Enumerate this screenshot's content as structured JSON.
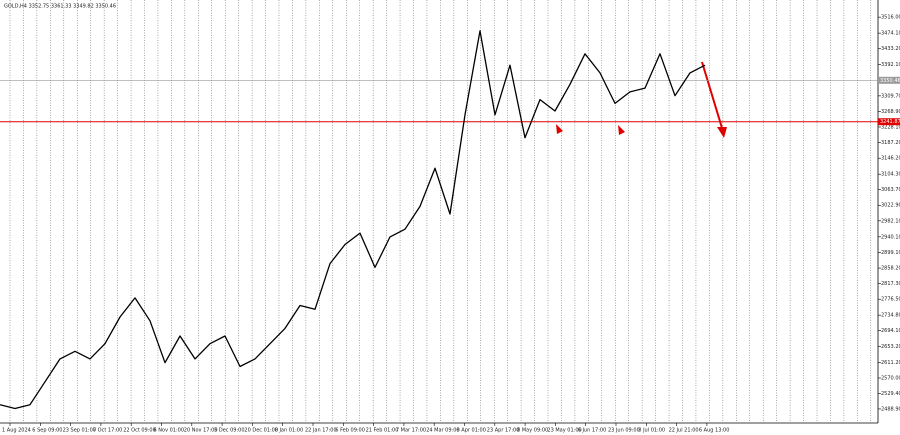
{
  "chart_data": {
    "type": "line",
    "subtitle": "GOLD,H4  3352.75 3361.33 3349.82 3350.46",
    "color": "#000000",
    "values": [
      2500,
      2490,
      2500,
      2560,
      2620,
      2640,
      2620,
      2660,
      2730,
      2780,
      2720,
      2610,
      2680,
      2620,
      2660,
      2680,
      2600,
      2620,
      2660,
      2700,
      2760,
      2750,
      2870,
      2920,
      2950,
      2860,
      2940,
      2960,
      3020,
      3120,
      3000,
      3260,
      3480,
      3260,
      3390,
      3200,
      3300,
      3270,
      3340,
      3420,
      3370,
      3290,
      3320,
      3330,
      3420,
      3310,
      3370,
      3390
    ],
    "x_labels": [
      "1 Aug 2024",
      "6 Sep 09:00",
      "23 Sep 01:00",
      "7 Oct 17:00",
      "22 Oct 09:00",
      "6 Nov 01:00",
      "20 Nov 17:00",
      "5 Dec 09:00",
      "20 Dec 01:00",
      "8 Jan 01:00",
      "22 Jan 17:00",
      "6 Feb 09:00",
      "21 Feb 01:00",
      "7 Mar 17:00",
      "24 Mar 09:00",
      "8 Apr 01:00",
      "23 Apr 17:00",
      "8 May 09:00",
      "23 May 01:00",
      "6 Jun 17:00",
      "23 Jun 09:00",
      "8 Jul 01:00",
      "22 Jul 21:00",
      "6 Aug 13:00"
    ],
    "ylim": [
      2452,
      3561
    ],
    "yticks": [
      {
        "value": 3516.0,
        "label": "3516.00"
      },
      {
        "value": 3474.1,
        "label": "3474.10"
      },
      {
        "value": 3433.2,
        "label": "3433.20"
      },
      {
        "value": 3392.1,
        "label": "3392.10"
      },
      {
        "value": 3309.7,
        "label": "3309.70"
      },
      {
        "value": 3268.9,
        "label": "3268.90"
      },
      {
        "value": 3228.1,
        "label": "3228.10"
      },
      {
        "value": 3187.2,
        "label": "3187.20"
      },
      {
        "value": 3146.2,
        "label": "3146.20"
      },
      {
        "value": 3104.3,
        "label": "3104.30"
      },
      {
        "value": 3063.7,
        "label": "3063.70"
      },
      {
        "value": 3022.9,
        "label": "3022.90"
      },
      {
        "value": 2982.1,
        "label": "2982.10"
      },
      {
        "value": 2940.1,
        "label": "2940.10"
      },
      {
        "value": 2899.1,
        "label": "2899.10"
      },
      {
        "value": 2858.2,
        "label": "2858.20"
      },
      {
        "value": 2817.3,
        "label": "2817.30"
      },
      {
        "value": 2776.5,
        "label": "2776.50"
      },
      {
        "value": 2734.8,
        "label": "2734.80"
      },
      {
        "value": 2694.1,
        "label": "2694.10"
      },
      {
        "value": 2653.2,
        "label": "2653.20"
      },
      {
        "value": 2611.2,
        "label": "2611.20"
      },
      {
        "value": 2570.0,
        "label": "2570.00"
      },
      {
        "value": 2529.4,
        "label": "2529.40"
      },
      {
        "value": 2488.9,
        "label": "2488.90"
      }
    ],
    "levels": [
      {
        "value": 3350.46,
        "color": "#9a9a9a"
      },
      {
        "value": 3241.87,
        "color": "#e00000"
      }
    ]
  }
}
